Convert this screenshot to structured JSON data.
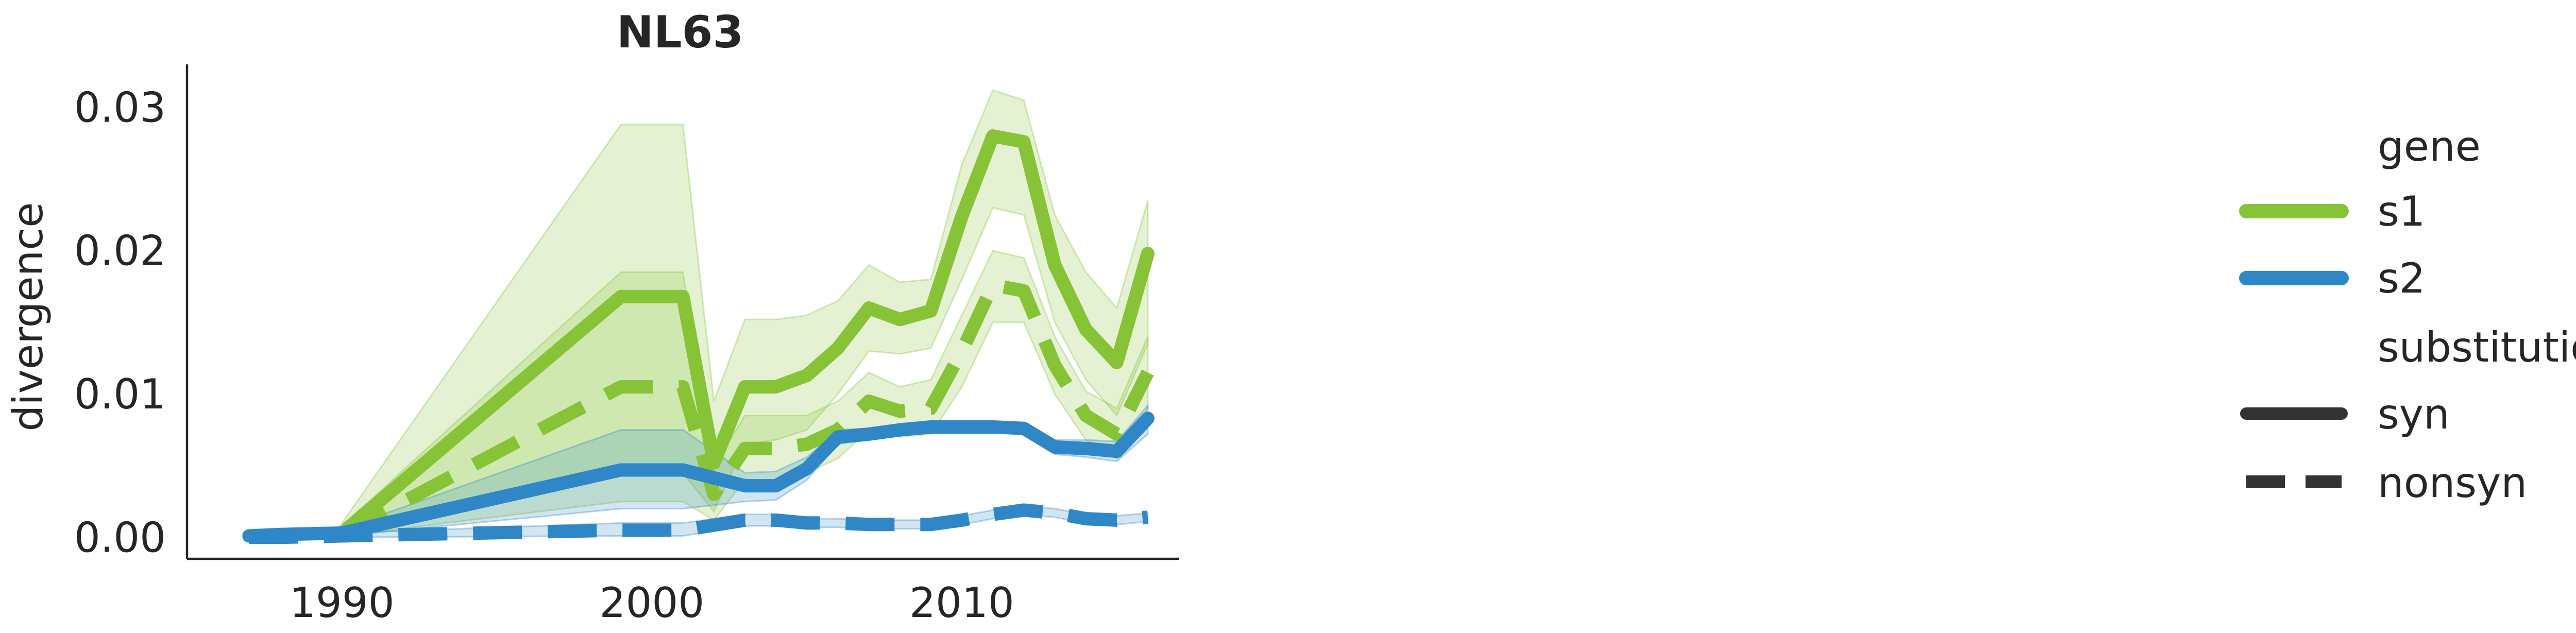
{
  "chart_data": {
    "type": "line",
    "title": "NL63",
    "xlabel": "",
    "ylabel": "divergence",
    "xlim": [
      1985,
      2017
    ],
    "ylim": [
      -0.0015,
      0.033
    ],
    "xticks": [
      1990,
      2000,
      2010
    ],
    "yticks": [
      0.0,
      0.01,
      0.02,
      0.03
    ],
    "ytick_labels": [
      "0.00",
      "0.01",
      "0.02",
      "0.03"
    ],
    "grid": false,
    "colors": {
      "s1": "#86c336",
      "s2": "#2f87c7",
      "legend_marker": "#333333",
      "axis": "#262626"
    },
    "legend": {
      "placement": "right",
      "gene_title": "gene",
      "gene_entries": [
        "s1",
        "s2"
      ],
      "substitution_title": "substitution",
      "substitution_entries": [
        "syn",
        "nonsyn"
      ]
    },
    "series": [
      {
        "gene": "s1",
        "substitution": "syn",
        "style": "solid",
        "x": [
          1990,
          1999,
          2001,
          2002,
          2003,
          2004,
          2005,
          2006,
          2007,
          2008,
          2009,
          2010,
          2011,
          2012,
          2013,
          2014,
          2015,
          2016
        ],
        "y": [
          0.0003,
          0.0168,
          0.0168,
          0.0052,
          0.0105,
          0.0105,
          0.0113,
          0.0132,
          0.016,
          0.0152,
          0.0158,
          0.0224,
          0.028,
          0.0276,
          0.019,
          0.0145,
          0.0122,
          0.0198
        ],
        "lower": [
          0.0001,
          0.0045,
          0.0045,
          0.0018,
          0.0065,
          0.0068,
          0.0075,
          0.01,
          0.013,
          0.0128,
          0.0132,
          0.018,
          0.023,
          0.0225,
          0.015,
          0.011,
          0.0085,
          0.0135
        ],
        "upper": [
          0.001,
          0.0288,
          0.0288,
          0.0095,
          0.0152,
          0.0152,
          0.0155,
          0.0165,
          0.019,
          0.0178,
          0.018,
          0.026,
          0.0312,
          0.0305,
          0.0225,
          0.0185,
          0.016,
          0.0235
        ]
      },
      {
        "gene": "s1",
        "substitution": "nonsyn",
        "style": "dashed",
        "x": [
          1990,
          1999,
          2001,
          2002,
          2003,
          2004,
          2005,
          2006,
          2007,
          2008,
          2009,
          2010,
          2011,
          2012,
          2013,
          2014,
          2015,
          2016
        ],
        "y": [
          0.0002,
          0.0105,
          0.0105,
          0.003,
          0.0062,
          0.0062,
          0.0065,
          0.0075,
          0.0095,
          0.0088,
          0.009,
          0.013,
          0.0176,
          0.0172,
          0.012,
          0.0085,
          0.0072,
          0.0115
        ],
        "lower": [
          0.0001,
          0.0025,
          0.0025,
          0.0012,
          0.004,
          0.004,
          0.0045,
          0.0055,
          0.0075,
          0.007,
          0.0072,
          0.0105,
          0.015,
          0.015,
          0.01,
          0.0068,
          0.0055,
          0.009
        ],
        "upper": [
          0.0008,
          0.0185,
          0.0185,
          0.005,
          0.0085,
          0.0085,
          0.0085,
          0.0095,
          0.0115,
          0.0105,
          0.011,
          0.0155,
          0.02,
          0.0195,
          0.014,
          0.0102,
          0.009,
          0.014
        ]
      },
      {
        "gene": "s2",
        "substitution": "syn",
        "style": "solid",
        "x": [
          1987,
          1988,
          1990,
          1999,
          2001,
          2003,
          2004,
          2005,
          2006,
          2007,
          2008,
          2009,
          2010,
          2011,
          2012,
          2013,
          2014,
          2015,
          2016
        ],
        "y": [
          0.0001,
          0.0002,
          0.0003,
          0.0047,
          0.0047,
          0.0036,
          0.0036,
          0.0048,
          0.007,
          0.0072,
          0.0075,
          0.0077,
          0.0077,
          0.0077,
          0.0076,
          0.0063,
          0.0062,
          0.006,
          0.0083
        ],
        "lower": [
          0.0,
          0.0001,
          0.0001,
          0.002,
          0.002,
          0.0025,
          0.0026,
          0.004,
          0.0065,
          0.0068,
          0.0071,
          0.0073,
          0.0073,
          0.0073,
          0.0072,
          0.0058,
          0.0056,
          0.0053,
          0.0072
        ],
        "upper": [
          0.0002,
          0.0004,
          0.0006,
          0.0075,
          0.0075,
          0.0045,
          0.0046,
          0.0056,
          0.0075,
          0.0076,
          0.0079,
          0.0081,
          0.0081,
          0.0081,
          0.008,
          0.0068,
          0.0068,
          0.0067,
          0.0092
        ]
      },
      {
        "gene": "s2",
        "substitution": "nonsyn",
        "style": "dashed",
        "x": [
          1987,
          1988,
          1990,
          1999,
          2001,
          2003,
          2004,
          2005,
          2006,
          2007,
          2008,
          2009,
          2010,
          2011,
          2012,
          2013,
          2014,
          2015,
          2016
        ],
        "y": [
          0.0,
          0.0,
          0.0001,
          0.0005,
          0.0005,
          0.0012,
          0.0012,
          0.001,
          0.001,
          0.0009,
          0.0009,
          0.0009,
          0.0012,
          0.0016,
          0.0019,
          0.0017,
          0.0013,
          0.0012,
          0.0014
        ],
        "lower": [
          0.0,
          0.0,
          0.0,
          0.0001,
          0.0001,
          0.0008,
          0.0008,
          0.0007,
          0.0007,
          0.0006,
          0.0006,
          0.0006,
          0.0009,
          0.0013,
          0.0016,
          0.0014,
          0.001,
          0.0009,
          0.0011
        ],
        "upper": [
          0.0001,
          0.0001,
          0.0003,
          0.001,
          0.001,
          0.0016,
          0.0016,
          0.0013,
          0.0013,
          0.0012,
          0.0012,
          0.0012,
          0.0015,
          0.0019,
          0.0022,
          0.002,
          0.0016,
          0.0015,
          0.0017
        ]
      }
    ]
  }
}
